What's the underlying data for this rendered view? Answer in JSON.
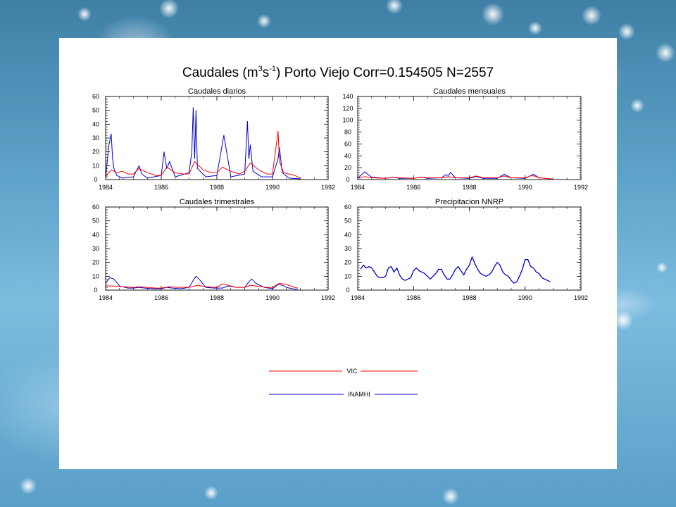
{
  "figure": {
    "title_prefix": "Caudales (m",
    "title_sup1": "3",
    "title_mid": "s",
    "title_sup2": "-1",
    "title_suffix": ") Porto Viejo Corr=0.154505 N=2557"
  },
  "colors": {
    "vic": "#ff0000",
    "inamhi": "#0000cc",
    "panel": "#ffffff"
  },
  "legend": {
    "items": [
      {
        "label": "VIC",
        "color": "#ff0000"
      },
      {
        "label": "INAMHI",
        "color": "#0000cc"
      }
    ]
  },
  "chart_data": [
    {
      "type": "line",
      "title": "Caudales diarios",
      "xlim": [
        1984,
        1992
      ],
      "ylim": [
        0,
        60
      ],
      "xticks": [
        1984,
        1986,
        1988,
        1990,
        1992
      ],
      "yticks": [
        0,
        10,
        20,
        30,
        40,
        50,
        60
      ],
      "series": [
        {
          "name": "INAMHI",
          "x": [
            1984.0,
            1984.12,
            1984.2,
            1984.25,
            1984.3,
            1984.4,
            1984.6,
            1985.0,
            1985.2,
            1985.3,
            1985.5,
            1986.0,
            1986.1,
            1986.2,
            1986.3,
            1986.5,
            1987.0,
            1987.1,
            1987.15,
            1987.2,
            1987.25,
            1987.3,
            1987.6,
            1988.0,
            1988.25,
            1988.5,
            1989.0,
            1989.1,
            1989.15,
            1989.2,
            1989.3,
            1989.6,
            1990.0,
            1990.2,
            1990.25,
            1990.35,
            1990.6,
            1991.0
          ],
          "y": [
            1,
            25,
            33,
            15,
            8,
            3,
            1,
            2,
            10,
            4,
            1,
            3,
            20,
            8,
            13,
            2,
            5,
            20,
            52,
            15,
            50,
            8,
            2,
            3,
            32,
            2,
            4,
            42,
            15,
            25,
            6,
            2,
            2,
            15,
            23,
            5,
            1,
            0.5
          ]
        },
        {
          "name": "VIC",
          "x": [
            1984.0,
            1984.2,
            1984.4,
            1984.6,
            1984.8,
            1985.0,
            1985.2,
            1985.5,
            1985.8,
            1986.0,
            1986.2,
            1986.5,
            1986.8,
            1987.0,
            1987.2,
            1987.5,
            1987.8,
            1988.0,
            1988.2,
            1988.5,
            1988.8,
            1989.0,
            1989.2,
            1989.5,
            1989.8,
            1990.0,
            1990.2,
            1990.25,
            1990.4,
            1990.6,
            1990.8,
            1991.0
          ],
          "y": [
            2,
            7,
            5,
            6,
            4,
            4,
            8,
            5,
            3,
            3,
            9,
            5,
            4,
            4,
            13,
            7,
            5,
            5,
            9,
            6,
            4,
            6,
            12,
            7,
            4,
            4,
            35,
            13,
            5,
            4,
            3,
            1
          ]
        }
      ]
    },
    {
      "type": "line",
      "title": "Caudales mensuales",
      "xlim": [
        1984,
        1992
      ],
      "ylim": [
        0,
        140
      ],
      "xticks": [
        1984,
        1986,
        1988,
        1990,
        1992
      ],
      "yticks": [
        0,
        20,
        40,
        60,
        80,
        100,
        120,
        140
      ],
      "series": [
        {
          "name": "INAMHI",
          "x": [
            1984.0,
            1984.25,
            1984.5,
            1985.0,
            1985.25,
            1985.5,
            1986.0,
            1986.25,
            1986.5,
            1987.0,
            1987.15,
            1987.25,
            1987.33,
            1987.5,
            1988.0,
            1988.25,
            1988.5,
            1989.0,
            1989.25,
            1989.5,
            1990.0,
            1990.3,
            1990.5,
            1991.0
          ],
          "y": [
            2,
            13,
            4,
            2,
            4,
            2,
            2,
            4,
            2,
            3,
            8,
            7,
            12,
            3,
            2,
            5,
            2,
            2,
            9,
            3,
            2,
            9,
            3,
            1
          ]
        },
        {
          "name": "VIC",
          "x": [
            1984.0,
            1984.25,
            1984.5,
            1985.0,
            1985.25,
            1985.5,
            1986.0,
            1986.25,
            1986.5,
            1987.0,
            1987.25,
            1987.5,
            1988.0,
            1988.25,
            1988.5,
            1989.0,
            1989.25,
            1989.5,
            1990.0,
            1990.25,
            1990.5,
            1991.0
          ],
          "y": [
            2,
            5,
            3,
            2,
            4,
            3,
            2,
            4,
            3,
            3,
            5,
            3,
            3,
            6,
            3,
            3,
            6,
            3,
            3,
            7,
            3,
            1
          ]
        }
      ]
    },
    {
      "type": "line",
      "title": "Caudales trimestrales",
      "xlim": [
        1984,
        1992
      ],
      "ylim": [
        0,
        60
      ],
      "xticks": [
        1984,
        1986,
        1988,
        1990,
        1992
      ],
      "yticks": [
        0,
        10,
        20,
        30,
        40,
        50,
        60
      ],
      "series": [
        {
          "name": "INAMHI",
          "x": [
            1984.0,
            1984.15,
            1984.3,
            1984.5,
            1984.8,
            1985.0,
            1985.2,
            1985.4,
            1985.7,
            1986.0,
            1986.2,
            1986.4,
            1986.7,
            1987.0,
            1987.15,
            1987.25,
            1987.4,
            1987.6,
            1987.9,
            1988.2,
            1988.4,
            1988.7,
            1989.0,
            1989.15,
            1989.25,
            1989.4,
            1989.7,
            1990.0,
            1990.2,
            1990.35,
            1990.5,
            1990.7,
            1990.9
          ],
          "y": [
            5,
            9,
            8,
            3,
            1.5,
            1.5,
            2,
            1.5,
            1,
            1,
            2,
            1.5,
            1,
            2,
            7,
            10,
            7,
            2,
            1.5,
            1.5,
            3,
            2,
            2,
            6,
            8,
            5,
            2,
            1,
            4,
            3.5,
            2,
            1,
            0.5
          ]
        },
        {
          "name": "VIC",
          "x": [
            1984.0,
            1984.3,
            1984.6,
            1985.0,
            1985.2,
            1985.5,
            1985.8,
            1986.0,
            1986.3,
            1986.6,
            1987.0,
            1987.3,
            1987.6,
            1988.0,
            1988.2,
            1988.4,
            1988.7,
            1989.0,
            1989.2,
            1989.4,
            1989.8,
            1990.0,
            1990.25,
            1990.5,
            1990.8,
            1990.9
          ],
          "y": [
            3,
            3,
            2.5,
            2,
            2.5,
            2,
            1.5,
            1.5,
            2.5,
            2,
            2,
            3.5,
            2.5,
            2,
            4.5,
            3.5,
            2,
            2,
            3.5,
            3,
            2,
            2,
            5,
            4,
            2,
            1.5
          ]
        }
      ]
    },
    {
      "type": "line",
      "title": "Precipitacion NNRP",
      "xlim": [
        1984,
        1992
      ],
      "ylim": [
        0,
        60
      ],
      "xticks": [
        1984,
        1986,
        1988,
        1990,
        1992
      ],
      "yticks": [
        0,
        10,
        20,
        30,
        40,
        50,
        60
      ],
      "series": [
        {
          "name": "",
          "x": [
            1984.1,
            1984.2,
            1984.3,
            1984.4,
            1984.5,
            1984.6,
            1984.7,
            1984.8,
            1984.9,
            1985.0,
            1985.1,
            1985.2,
            1985.3,
            1985.4,
            1985.5,
            1985.6,
            1985.7,
            1985.8,
            1985.9,
            1986.0,
            1986.1,
            1986.2,
            1986.3,
            1986.4,
            1986.5,
            1986.6,
            1986.7,
            1986.8,
            1986.9,
            1987.0,
            1987.1,
            1987.2,
            1987.3,
            1987.4,
            1987.5,
            1987.6,
            1987.7,
            1987.8,
            1987.9,
            1988.0,
            1988.1,
            1988.2,
            1988.3,
            1988.4,
            1988.5,
            1988.6,
            1988.7,
            1988.8,
            1988.9,
            1989.0,
            1989.1,
            1989.2,
            1989.3,
            1989.4,
            1989.5,
            1989.6,
            1989.7,
            1989.8,
            1989.9,
            1990.0,
            1990.1,
            1990.2,
            1990.3,
            1990.4,
            1990.5,
            1990.6,
            1990.7,
            1990.8,
            1990.9
          ],
          "y": [
            15,
            18,
            16,
            17,
            16,
            13,
            10,
            9,
            9,
            10,
            16,
            17,
            13,
            16,
            11,
            8,
            7,
            8,
            9,
            14,
            16,
            14,
            13,
            12,
            10,
            8,
            10,
            12,
            15,
            15,
            11,
            8,
            8,
            11,
            15,
            17,
            14,
            11,
            15,
            18,
            24,
            19,
            15,
            12,
            11,
            10,
            11,
            13,
            17,
            20,
            18,
            13,
            11,
            10,
            7,
            5,
            6,
            10,
            15,
            22,
            22,
            17,
            16,
            13,
            12,
            9,
            8,
            7,
            6
          ]
        }
      ]
    }
  ]
}
